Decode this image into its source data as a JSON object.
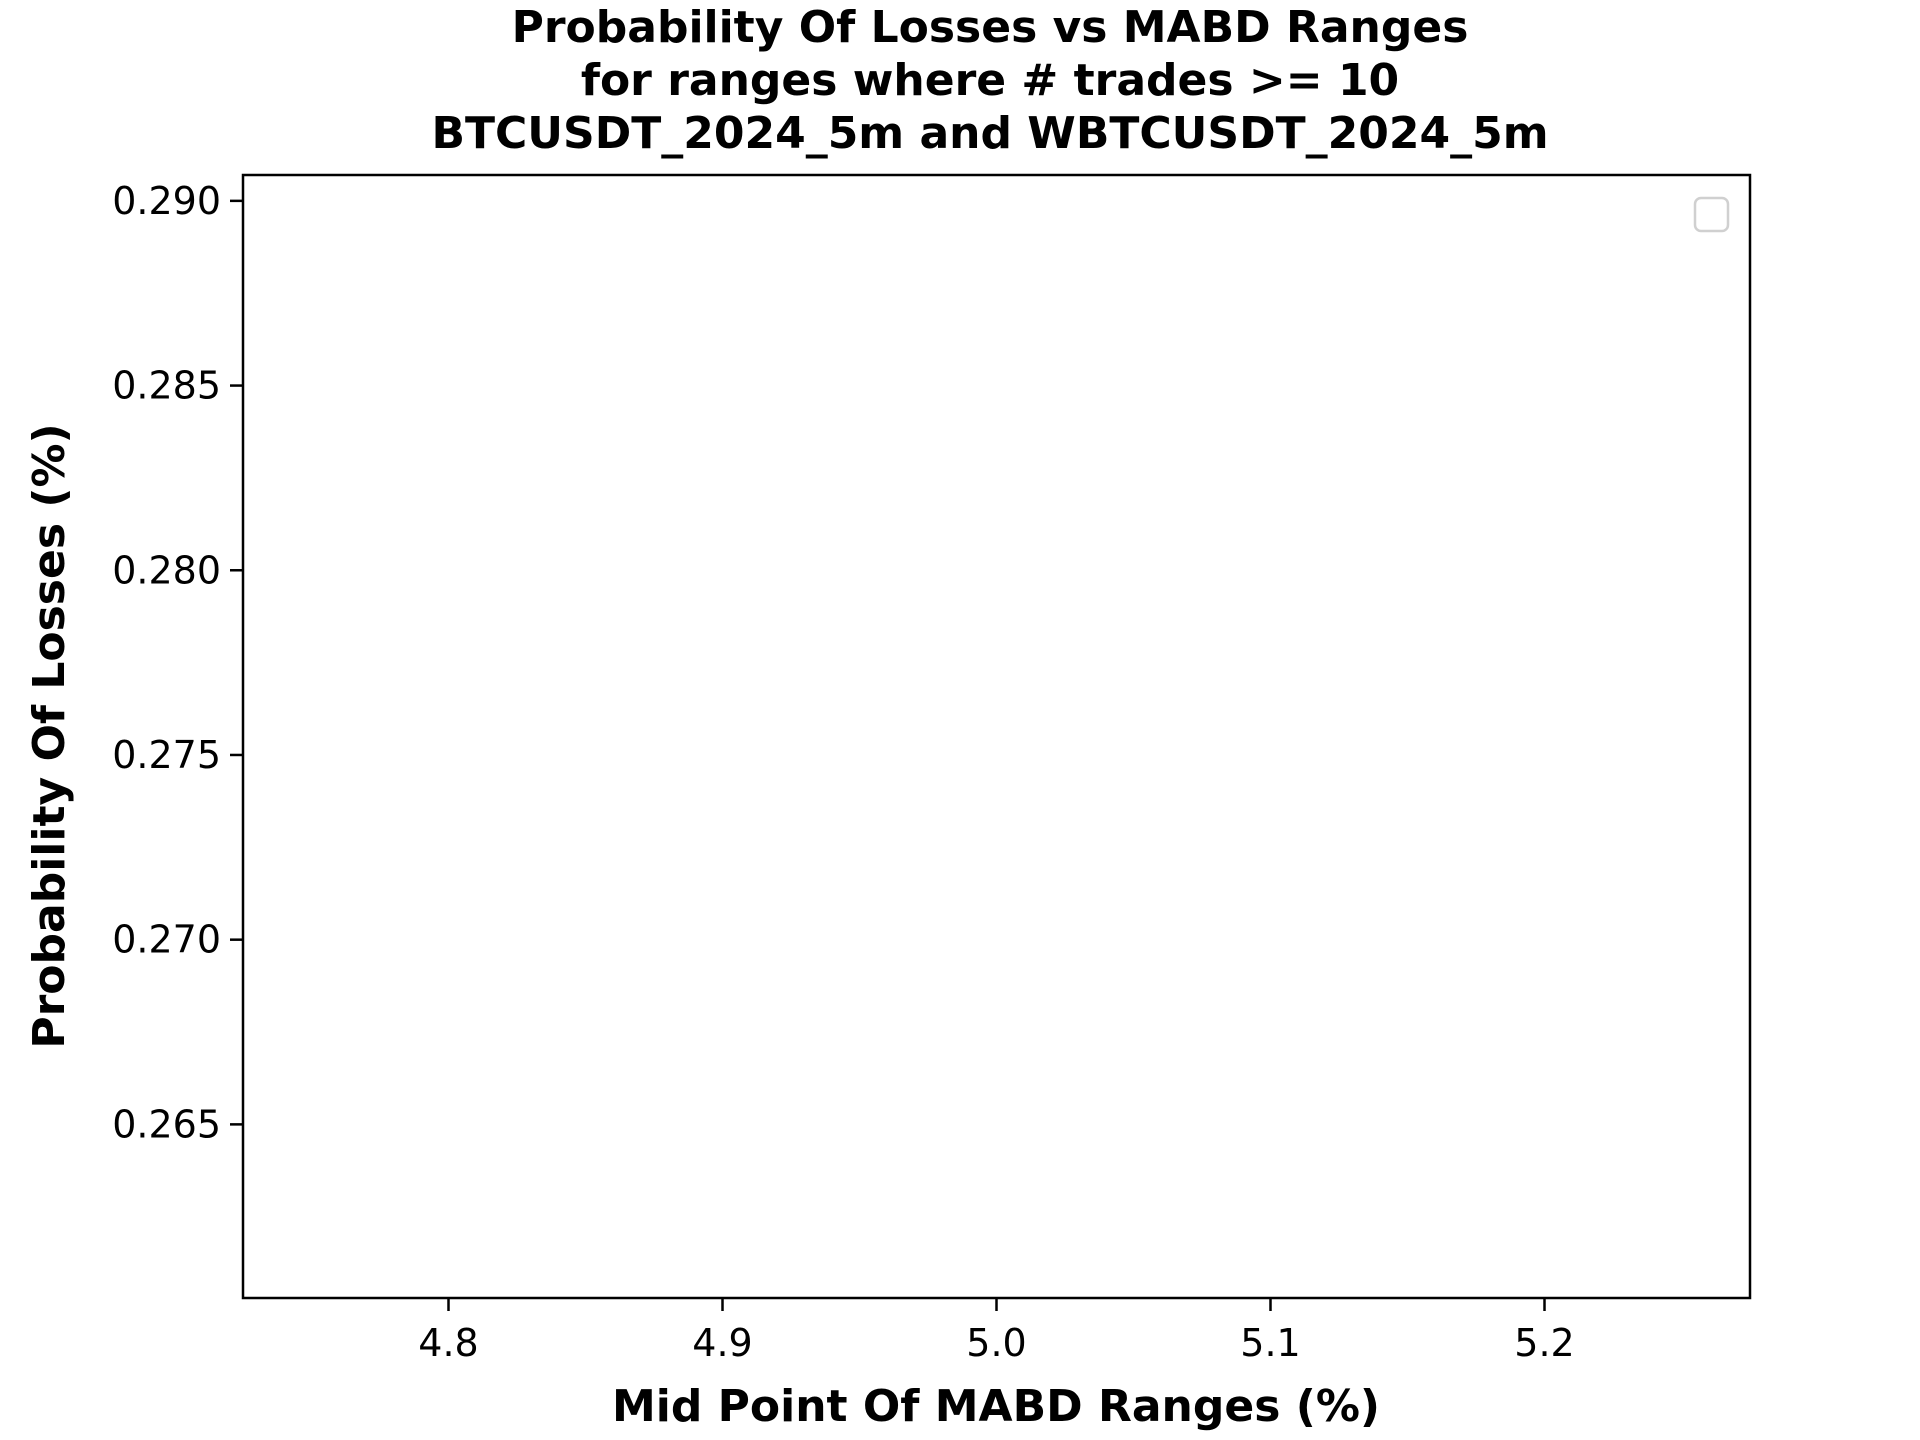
{
  "chart_data": {
    "type": "scatter",
    "title": [
      "Probability Of Losses vs MABD Ranges",
      "for ranges where # trades >= 10",
      "BTCUSDT_2024_5m and WBTCUSDT_2024_5m"
    ],
    "xlabel": "Mid Point Of MABD Ranges (%)",
    "ylabel": "Probability Of Losses (%)",
    "xlim": [
      4.725,
      5.275
    ],
    "ylim": [
      0.2603,
      0.2907
    ],
    "x_ticks": [
      "4.8",
      "4.9",
      "5.0",
      "5.1",
      "5.2"
    ],
    "y_ticks": [
      "0.265",
      "0.270",
      "0.275",
      "0.280",
      "0.285",
      "0.290"
    ],
    "series": [],
    "grid": false,
    "legend": "top-right",
    "legend_entries": []
  }
}
